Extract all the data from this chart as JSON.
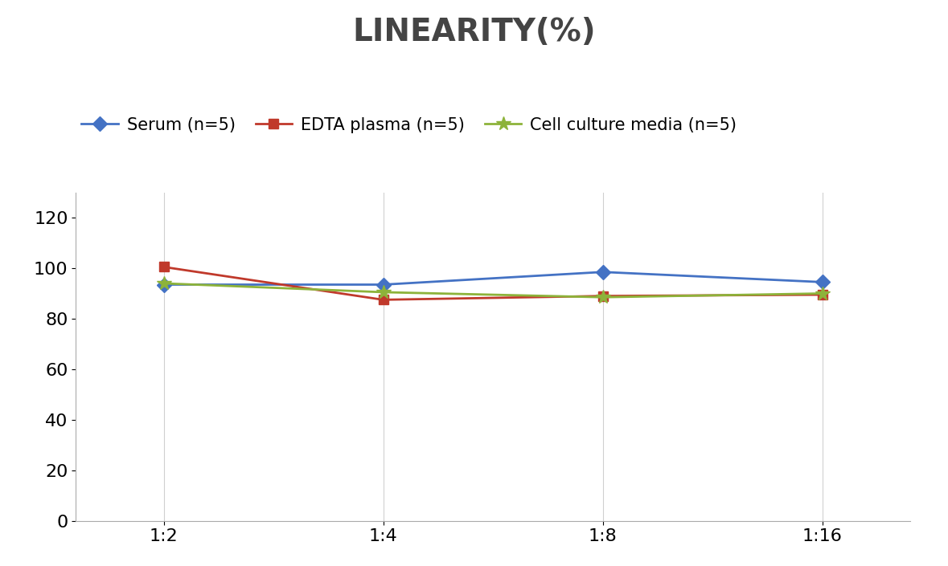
{
  "title": "LINEARITY(%)",
  "x_labels": [
    "1:2",
    "1:4",
    "1:8",
    "1:16"
  ],
  "x_positions": [
    0,
    1,
    2,
    3
  ],
  "series": [
    {
      "label": "Serum (n=5)",
      "color": "#4472C4",
      "marker": "D",
      "values": [
        93.5,
        93.5,
        98.5,
        94.5
      ]
    },
    {
      "label": "EDTA plasma (n=5)",
      "color": "#C0392B",
      "marker": "s",
      "values": [
        100.5,
        87.5,
        89.0,
        89.5
      ]
    },
    {
      "label": "Cell culture media (n=5)",
      "color": "#8DB33A",
      "marker": "*",
      "values": [
        94.0,
        90.5,
        88.5,
        90.0
      ]
    }
  ],
  "ylim": [
    0,
    130
  ],
  "yticks": [
    0,
    20,
    40,
    60,
    80,
    100,
    120
  ],
  "background_color": "#ffffff",
  "title_fontsize": 28,
  "tick_fontsize": 16,
  "legend_fontsize": 15
}
